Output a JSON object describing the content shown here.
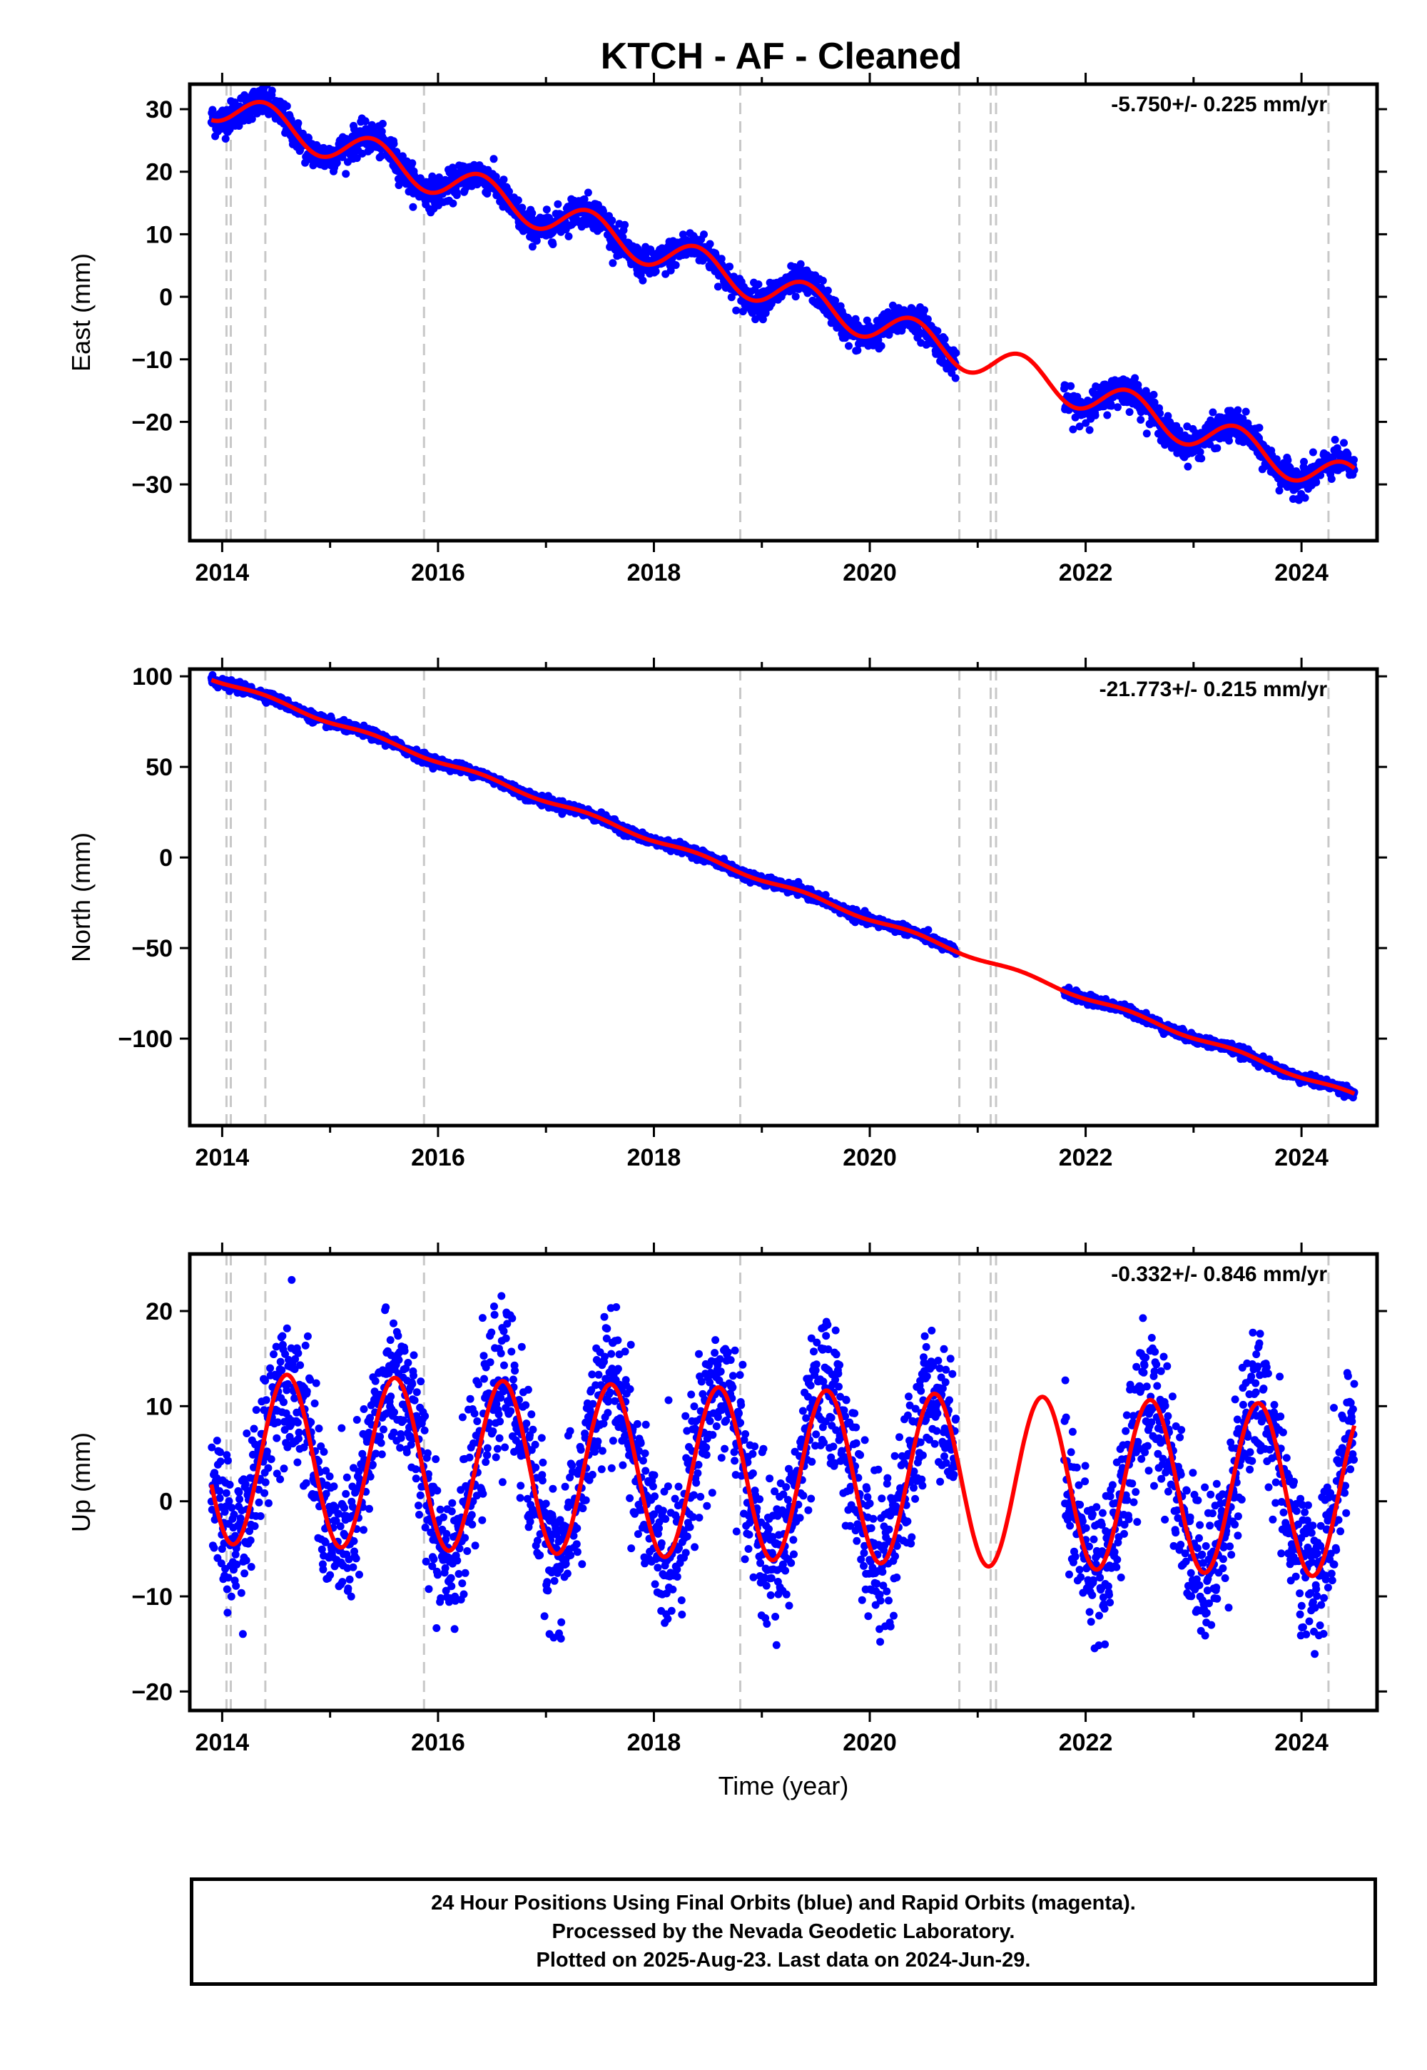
{
  "chart_data": {
    "type": "scatter",
    "title": "KTCH  - AF - Cleaned",
    "xlabel": "Time (year)",
    "xlim": [
      2013.7,
      2024.7
    ],
    "x_ticks": [
      2014,
      2016,
      2018,
      2020,
      2022,
      2024
    ],
    "x_tick_labels": [
      "2014",
      "2016",
      "2018",
      "2020",
      "2022",
      "2024"
    ],
    "data_range": {
      "first": 2013.9,
      "last": 2024.49
    },
    "data_gap": [
      2020.8,
      2021.8
    ],
    "offset_lines": [
      2014.04,
      2014.08,
      2014.4,
      2015.87,
      2018.8,
      2020.83,
      2021.12,
      2021.17,
      2024.25
    ],
    "colors": {
      "data": "#0000ff",
      "model": "#ff0000",
      "offset_line": "#c8c8c8"
    },
    "panels": [
      {
        "name": "east",
        "ylabel": "East (mm)",
        "ylim": [
          -39,
          34
        ],
        "y_ticks": [
          30,
          20,
          10,
          0,
          -10,
          -20,
          -30
        ],
        "y_tick_labels": [
          "30",
          "20",
          "10",
          "0",
          "−10",
          "−20",
          "−30"
        ],
        "rate_label": "-5.750+/- 0.225 mm/yr",
        "model": {
          "intercept_at_2014": 30.5,
          "rate_mm_per_yr": -5.75,
          "annual_amp": 2.8,
          "annual_peak_year_fraction": 0.4,
          "noise": 1.2
        }
      },
      {
        "name": "north",
        "ylabel": "North (mm)",
        "ylim": [
          -148,
          104
        ],
        "y_ticks": [
          100,
          50,
          0,
          -50,
          -100
        ],
        "y_tick_labels": [
          "100",
          "50",
          "0",
          "−50",
          "−100"
        ],
        "rate_label": "-21.773+/- 0.215 mm/yr",
        "model": {
          "intercept_at_2014": 97,
          "rate_mm_per_yr": -21.773,
          "annual_amp": 1.2,
          "annual_peak_year_fraction": 0.4,
          "noise": 1.3
        }
      },
      {
        "name": "up",
        "ylabel": "Up (mm)",
        "ylim": [
          -22,
          26
        ],
        "y_ticks": [
          20,
          10,
          0,
          -10,
          -20
        ],
        "y_tick_labels": [
          "20",
          "10",
          "0",
          "−10",
          "−20"
        ],
        "rate_label": "-0.332+/- 0.846 mm/yr",
        "model": {
          "intercept_at_2014": 4.5,
          "rate_mm_per_yr": -0.332,
          "annual_amp": 9.0,
          "annual_peak_year_fraction": 0.6,
          "noise": 3.8
        }
      }
    ]
  },
  "footer": {
    "line1": "24 Hour Positions Using Final Orbits (blue) and Rapid Orbits (magenta).",
    "line2": "Processed by the Nevada Geodetic Laboratory.",
    "line3": "Plotted on 2025-Aug-23. Last data on 2024-Jun-29."
  }
}
